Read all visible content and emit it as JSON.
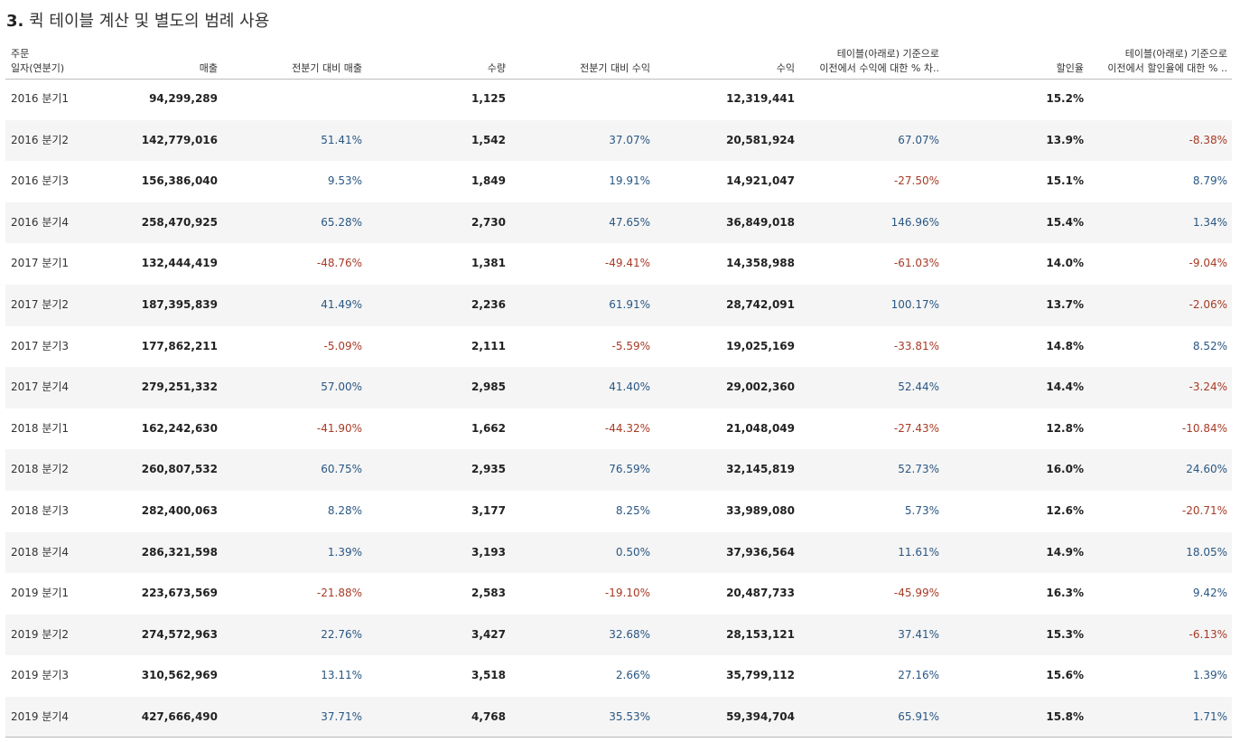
{
  "title": {
    "number": "3.",
    "text": "퀵 테이블 계산 및 별도의 범례 사용"
  },
  "colors": {
    "positive": "#2a5783",
    "negative": "#a83a26",
    "row_alt": "#f5f5f5"
  },
  "columns": {
    "date_line1": "주문",
    "date_line2": "일자(연분기)",
    "sales": "매출",
    "sales_change": "전분기 대비 매출",
    "quantity": "수량",
    "profit_change": "전분기 대비 수익",
    "profit": "수익",
    "profit_pct_line1": "테이블(아래로) 기준으로",
    "profit_pct_line2": "이전에서 수익에 대한 % 차..",
    "discount": "할인율",
    "discount_pct_line1": "테이블(아래로) 기준으로",
    "discount_pct_line2": "이전에서 할인율에 대한 % .."
  },
  "rows": [
    {
      "date": "2016 분기1",
      "sales": "94,299,289",
      "sales_change": "",
      "sales_change_sign": "",
      "quantity": "1,125",
      "profit_change": "",
      "profit_change_sign": "",
      "profit": "12,319,441",
      "profit_pct": "",
      "profit_pct_sign": "",
      "discount": "15.2%",
      "discount_pct": "",
      "discount_pct_sign": ""
    },
    {
      "date": "2016 분기2",
      "sales": "142,779,016",
      "sales_change": "51.41%",
      "sales_change_sign": "pos",
      "quantity": "1,542",
      "profit_change": "37.07%",
      "profit_change_sign": "pos",
      "profit": "20,581,924",
      "profit_pct": "67.07%",
      "profit_pct_sign": "pos",
      "discount": "13.9%",
      "discount_pct": "-8.38%",
      "discount_pct_sign": "neg"
    },
    {
      "date": "2016 분기3",
      "sales": "156,386,040",
      "sales_change": "9.53%",
      "sales_change_sign": "pos",
      "quantity": "1,849",
      "profit_change": "19.91%",
      "profit_change_sign": "pos",
      "profit": "14,921,047",
      "profit_pct": "-27.50%",
      "profit_pct_sign": "neg",
      "discount": "15.1%",
      "discount_pct": "8.79%",
      "discount_pct_sign": "pos"
    },
    {
      "date": "2016 분기4",
      "sales": "258,470,925",
      "sales_change": "65.28%",
      "sales_change_sign": "pos",
      "quantity": "2,730",
      "profit_change": "47.65%",
      "profit_change_sign": "pos",
      "profit": "36,849,018",
      "profit_pct": "146.96%",
      "profit_pct_sign": "pos",
      "discount": "15.4%",
      "discount_pct": "1.34%",
      "discount_pct_sign": "pos"
    },
    {
      "date": "2017 분기1",
      "sales": "132,444,419",
      "sales_change": "-48.76%",
      "sales_change_sign": "neg",
      "quantity": "1,381",
      "profit_change": "-49.41%",
      "profit_change_sign": "neg",
      "profit": "14,358,988",
      "profit_pct": "-61.03%",
      "profit_pct_sign": "neg",
      "discount": "14.0%",
      "discount_pct": "-9.04%",
      "discount_pct_sign": "neg"
    },
    {
      "date": "2017 분기2",
      "sales": "187,395,839",
      "sales_change": "41.49%",
      "sales_change_sign": "pos",
      "quantity": "2,236",
      "profit_change": "61.91%",
      "profit_change_sign": "pos",
      "profit": "28,742,091",
      "profit_pct": "100.17%",
      "profit_pct_sign": "pos",
      "discount": "13.7%",
      "discount_pct": "-2.06%",
      "discount_pct_sign": "neg"
    },
    {
      "date": "2017 분기3",
      "sales": "177,862,211",
      "sales_change": "-5.09%",
      "sales_change_sign": "neg",
      "quantity": "2,111",
      "profit_change": "-5.59%",
      "profit_change_sign": "neg",
      "profit": "19,025,169",
      "profit_pct": "-33.81%",
      "profit_pct_sign": "neg",
      "discount": "14.8%",
      "discount_pct": "8.52%",
      "discount_pct_sign": "pos"
    },
    {
      "date": "2017 분기4",
      "sales": "279,251,332",
      "sales_change": "57.00%",
      "sales_change_sign": "pos",
      "quantity": "2,985",
      "profit_change": "41.40%",
      "profit_change_sign": "pos",
      "profit": "29,002,360",
      "profit_pct": "52.44%",
      "profit_pct_sign": "pos",
      "discount": "14.4%",
      "discount_pct": "-3.24%",
      "discount_pct_sign": "neg"
    },
    {
      "date": "2018 분기1",
      "sales": "162,242,630",
      "sales_change": "-41.90%",
      "sales_change_sign": "neg",
      "quantity": "1,662",
      "profit_change": "-44.32%",
      "profit_change_sign": "neg",
      "profit": "21,048,049",
      "profit_pct": "-27.43%",
      "profit_pct_sign": "neg",
      "discount": "12.8%",
      "discount_pct": "-10.84%",
      "discount_pct_sign": "neg"
    },
    {
      "date": "2018 분기2",
      "sales": "260,807,532",
      "sales_change": "60.75%",
      "sales_change_sign": "pos",
      "quantity": "2,935",
      "profit_change": "76.59%",
      "profit_change_sign": "pos",
      "profit": "32,145,819",
      "profit_pct": "52.73%",
      "profit_pct_sign": "pos",
      "discount": "16.0%",
      "discount_pct": "24.60%",
      "discount_pct_sign": "pos"
    },
    {
      "date": "2018 분기3",
      "sales": "282,400,063",
      "sales_change": "8.28%",
      "sales_change_sign": "pos",
      "quantity": "3,177",
      "profit_change": "8.25%",
      "profit_change_sign": "pos",
      "profit": "33,989,080",
      "profit_pct": "5.73%",
      "profit_pct_sign": "pos",
      "discount": "12.6%",
      "discount_pct": "-20.71%",
      "discount_pct_sign": "neg"
    },
    {
      "date": "2018 분기4",
      "sales": "286,321,598",
      "sales_change": "1.39%",
      "sales_change_sign": "pos",
      "quantity": "3,193",
      "profit_change": "0.50%",
      "profit_change_sign": "pos",
      "profit": "37,936,564",
      "profit_pct": "11.61%",
      "profit_pct_sign": "pos",
      "discount": "14.9%",
      "discount_pct": "18.05%",
      "discount_pct_sign": "pos"
    },
    {
      "date": "2019 분기1",
      "sales": "223,673,569",
      "sales_change": "-21.88%",
      "sales_change_sign": "neg",
      "quantity": "2,583",
      "profit_change": "-19.10%",
      "profit_change_sign": "neg",
      "profit": "20,487,733",
      "profit_pct": "-45.99%",
      "profit_pct_sign": "neg",
      "discount": "16.3%",
      "discount_pct": "9.42%",
      "discount_pct_sign": "pos"
    },
    {
      "date": "2019 분기2",
      "sales": "274,572,963",
      "sales_change": "22.76%",
      "sales_change_sign": "pos",
      "quantity": "3,427",
      "profit_change": "32.68%",
      "profit_change_sign": "pos",
      "profit": "28,153,121",
      "profit_pct": "37.41%",
      "profit_pct_sign": "pos",
      "discount": "15.3%",
      "discount_pct": "-6.13%",
      "discount_pct_sign": "neg"
    },
    {
      "date": "2019 분기3",
      "sales": "310,562,969",
      "sales_change": "13.11%",
      "sales_change_sign": "pos",
      "quantity": "3,518",
      "profit_change": "2.66%",
      "profit_change_sign": "pos",
      "profit": "35,799,112",
      "profit_pct": "27.16%",
      "profit_pct_sign": "pos",
      "discount": "15.6%",
      "discount_pct": "1.39%",
      "discount_pct_sign": "pos"
    },
    {
      "date": "2019 분기4",
      "sales": "427,666,490",
      "sales_change": "37.71%",
      "sales_change_sign": "pos",
      "quantity": "4,768",
      "profit_change": "35.53%",
      "profit_change_sign": "pos",
      "profit": "59,394,704",
      "profit_pct": "65.91%",
      "profit_pct_sign": "pos",
      "discount": "15.8%",
      "discount_pct": "1.71%",
      "discount_pct_sign": "pos"
    }
  ]
}
